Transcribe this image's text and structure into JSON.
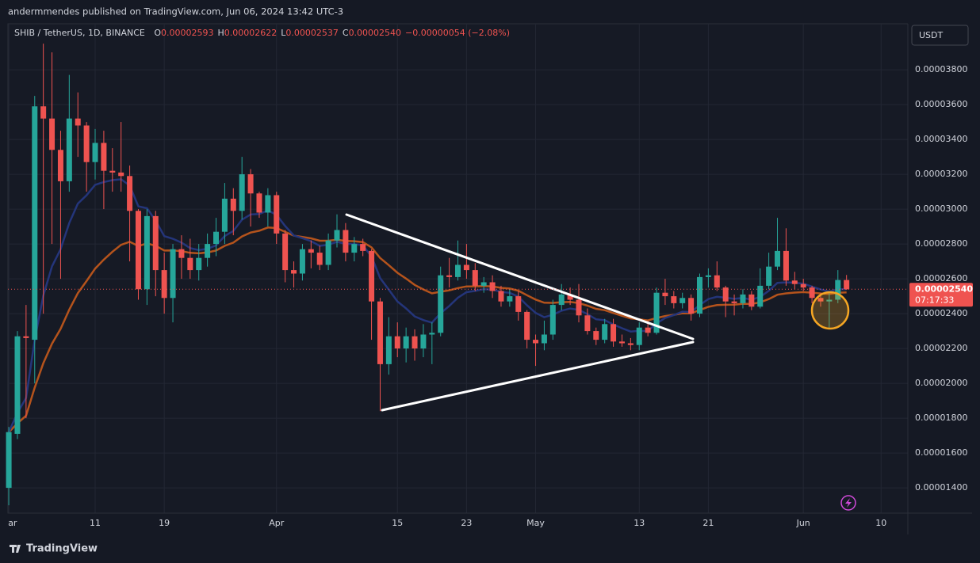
{
  "header": {
    "published": "andermmendes published on TradingView.com, Jun 06, 2024 13:42 UTC-3",
    "brand": "TradingView"
  },
  "chart_data": {
    "type": "candlestick",
    "legend": {
      "symbol": "SHIB / TetherUS, 1D, BINANCE",
      "items": [
        {
          "key": "O",
          "label": "0.00002593"
        },
        {
          "key": "H",
          "label": "0.00002622"
        },
        {
          "key": "L",
          "label": "0.00002537"
        },
        {
          "key": "C",
          "label": "0.00002540"
        }
      ],
      "change": "−0.00000054 (−2.08%)"
    },
    "currency": "USDT",
    "price_tag": {
      "label": "0.00002540",
      "countdown": "07:17:33"
    },
    "up_color": "#26a69a",
    "down_color": "#ef5350",
    "grid": true,
    "open": [
      1.4e-05,
      1.71e-05,
      2.27e-05,
      2.25e-05,
      3.59e-05,
      3.52e-05,
      3.34e-05,
      3.16e-05,
      3.52e-05,
      3.48e-05,
      3.27e-05,
      3.38e-05,
      3.22e-05,
      3.21e-05,
      3.19e-05,
      2.99e-05,
      2.54e-05,
      2.96e-05,
      2.65e-05,
      2.49e-05,
      2.77e-05,
      2.72e-05,
      2.65e-05,
      2.72e-05,
      2.8e-05,
      2.87e-05,
      3.06e-05,
      2.99e-05,
      3.2e-05,
      3.09e-05,
      2.98e-05,
      3.08e-05,
      2.86e-05,
      2.65e-05,
      2.63e-05,
      2.77e-05,
      2.75e-05,
      2.68e-05,
      2.82e-05,
      2.88e-05,
      2.75e-05,
      2.8e-05,
      2.76e-05,
      2.47e-05,
      2.11e-05,
      2.27e-05,
      2.2e-05,
      2.27e-05,
      2.2e-05,
      2.28e-05,
      2.29e-05,
      2.62e-05,
      2.61e-05,
      2.68e-05,
      2.65e-05,
      2.56e-05,
      2.58e-05,
      2.53e-05,
      2.47e-05,
      2.5e-05,
      2.41e-05,
      2.25e-05,
      2.23e-05,
      2.28e-05,
      2.45e-05,
      2.51e-05,
      2.48e-05,
      2.39e-05,
      2.3e-05,
      2.25e-05,
      2.34e-05,
      2.24e-05,
      2.23e-05,
      2.22e-05,
      2.32e-05,
      2.29e-05,
      2.52e-05,
      2.5e-05,
      2.46e-05,
      2.49e-05,
      2.4e-05,
      2.61e-05,
      2.62e-05,
      2.55e-05,
      2.47e-05,
      2.46e-05,
      2.51e-05,
      2.44e-05,
      2.56e-05,
      2.67e-05,
      2.76e-05,
      2.59e-05,
      2.57e-05,
      2.55e-05,
      2.49e-05,
      2.47e-05,
      2.48e-05,
      2.593e-05
    ],
    "high": [
      1.75e-05,
      2.3e-05,
      2.45e-05,
      3.65e-05,
      3.95e-05,
      3.9e-05,
      3.45e-05,
      3.77e-05,
      3.67e-05,
      3.5e-05,
      3.46e-05,
      3.45e-05,
      3.35e-05,
      3.5e-05,
      3.25e-05,
      3e-05,
      3e-05,
      2.99e-05,
      2.75e-05,
      2.8e-05,
      2.85e-05,
      2.83e-05,
      2.8e-05,
      2.86e-05,
      2.95e-05,
      3.15e-05,
      3.12e-05,
      3.3e-05,
      3.23e-05,
      3.1e-05,
      3.12e-05,
      3.1e-05,
      2.88e-05,
      2.7e-05,
      2.8e-05,
      2.82e-05,
      2.79e-05,
      2.86e-05,
      2.97e-05,
      2.92e-05,
      2.84e-05,
      2.83e-05,
      2.77e-05,
      2.49e-05,
      2.38e-05,
      2.35e-05,
      2.32e-05,
      2.31e-05,
      2.34e-05,
      2.35e-05,
      2.67e-05,
      2.72e-05,
      2.82e-05,
      2.8e-05,
      2.69e-05,
      2.61e-05,
      2.62e-05,
      2.56e-05,
      2.54e-05,
      2.53e-05,
      2.42e-05,
      2.28e-05,
      2.36e-05,
      2.48e-05,
      2.57e-05,
      2.55e-05,
      2.57e-05,
      2.43e-05,
      2.32e-05,
      2.37e-05,
      2.37e-05,
      2.28e-05,
      2.26e-05,
      2.35e-05,
      2.36e-05,
      2.55e-05,
      2.6e-05,
      2.53e-05,
      2.52e-05,
      2.51e-05,
      2.63e-05,
      2.66e-05,
      2.7e-05,
      2.56e-05,
      2.51e-05,
      2.54e-05,
      2.53e-05,
      2.66e-05,
      2.75e-05,
      2.95e-05,
      2.89e-05,
      2.64e-05,
      2.6e-05,
      2.56e-05,
      2.52e-05,
      2.52e-05,
      2.65e-05,
      2.622e-05
    ],
    "low": [
      1.3e-05,
      1.68e-05,
      1.8e-05,
      2e-05,
      2.4e-05,
      2.8e-05,
      2.6e-05,
      3.1e-05,
      3.3e-05,
      3.1e-05,
      3.17e-05,
      3e-05,
      3.1e-05,
      3.1e-05,
      2.7e-05,
      2.48e-05,
      2.45e-05,
      2.5e-05,
      2.4e-05,
      2.35e-05,
      2.6e-05,
      2.6e-05,
      2.59e-05,
      2.67e-05,
      2.73e-05,
      2.8e-05,
      2.85e-05,
      2.94e-05,
      2.9e-05,
      2.95e-05,
      2.9e-05,
      2.8e-05,
      2.58e-05,
      2.55e-05,
      2.59e-05,
      2.66e-05,
      2.65e-05,
      2.65e-05,
      2.78e-05,
      2.7e-05,
      2.7e-05,
      2.73e-05,
      2.25e-05,
      1.84e-05,
      2.05e-05,
      2.15e-05,
      2.12e-05,
      2.13e-05,
      2.15e-05,
      2.11e-05,
      2.27e-05,
      2.55e-05,
      2.59e-05,
      2.6e-05,
      2.53e-05,
      2.52e-05,
      2.49e-05,
      2.44e-05,
      2.44e-05,
      2.36e-05,
      2.2e-05,
      2.1e-05,
      2.19e-05,
      2.25e-05,
      2.42e-05,
      2.45e-05,
      2.35e-05,
      2.28e-05,
      2.22e-05,
      2.23e-05,
      2.21e-05,
      2.21e-05,
      2.19e-05,
      2.19e-05,
      2.27e-05,
      2.28e-05,
      2.45e-05,
      2.43e-05,
      2.43e-05,
      2.36e-05,
      2.38e-05,
      2.55e-05,
      2.53e-05,
      2.38e-05,
      2.39e-05,
      2.43e-05,
      2.42e-05,
      2.43e-05,
      2.54e-05,
      2.65e-05,
      2.56e-05,
      2.54e-05,
      2.53e-05,
      2.46e-05,
      2.44e-05,
      2.32e-05,
      2.46e-05,
      2.537e-05
    ],
    "close": [
      1.72e-05,
      2.27e-05,
      2.26e-05,
      3.59e-05,
      3.52e-05,
      3.34e-05,
      3.16e-05,
      3.52e-05,
      3.48e-05,
      3.27e-05,
      3.38e-05,
      3.22e-05,
      3.21e-05,
      3.19e-05,
      2.99e-05,
      2.54e-05,
      2.96e-05,
      2.65e-05,
      2.49e-05,
      2.77e-05,
      2.72e-05,
      2.65e-05,
      2.72e-05,
      2.8e-05,
      2.87e-05,
      3.06e-05,
      2.99e-05,
      3.2e-05,
      3.09e-05,
      2.98e-05,
      3.08e-05,
      2.86e-05,
      2.65e-05,
      2.63e-05,
      2.77e-05,
      2.75e-05,
      2.68e-05,
      2.82e-05,
      2.88e-05,
      2.75e-05,
      2.8e-05,
      2.76e-05,
      2.47e-05,
      2.11e-05,
      2.27e-05,
      2.2e-05,
      2.27e-05,
      2.2e-05,
      2.28e-05,
      2.29e-05,
      2.62e-05,
      2.61e-05,
      2.68e-05,
      2.65e-05,
      2.56e-05,
      2.58e-05,
      2.53e-05,
      2.47e-05,
      2.5e-05,
      2.41e-05,
      2.25e-05,
      2.23e-05,
      2.28e-05,
      2.45e-05,
      2.51e-05,
      2.48e-05,
      2.39e-05,
      2.3e-05,
      2.25e-05,
      2.34e-05,
      2.24e-05,
      2.23e-05,
      2.22e-05,
      2.32e-05,
      2.29e-05,
      2.52e-05,
      2.5e-05,
      2.46e-05,
      2.49e-05,
      2.4e-05,
      2.61e-05,
      2.62e-05,
      2.55e-05,
      2.47e-05,
      2.46e-05,
      2.51e-05,
      2.44e-05,
      2.56e-05,
      2.67e-05,
      2.76e-05,
      2.59e-05,
      2.57e-05,
      2.55e-05,
      2.49e-05,
      2.47e-05,
      2.48e-05,
      2.593e-05,
      2.54e-05
    ],
    "xlim": [
      -0.1,
      104.1
    ],
    "xticks": [
      {
        "value": 0,
        "label": "Mar"
      },
      {
        "value": 10,
        "label": "11"
      },
      {
        "value": 18,
        "label": "19"
      },
      {
        "value": 31,
        "label": "Apr"
      },
      {
        "value": 45,
        "label": "15"
      },
      {
        "value": 53,
        "label": "23"
      },
      {
        "value": 61,
        "label": "May"
      },
      {
        "value": 73,
        "label": "13"
      },
      {
        "value": 81,
        "label": "21"
      },
      {
        "value": 92,
        "label": "Jun"
      },
      {
        "value": 101,
        "label": "10"
      }
    ],
    "ylim": [
      1.255e-05,
      4.064e-05
    ],
    "yticks": [
      {
        "value": 1.4e-05,
        "label": "0.00001400"
      },
      {
        "value": 1.6e-05,
        "label": "0.00001600"
      },
      {
        "value": 1.8e-05,
        "label": "0.00001800"
      },
      {
        "value": 2e-05,
        "label": "0.00002000"
      },
      {
        "value": 2.2e-05,
        "label": "0.00002200"
      },
      {
        "value": 2.4e-05,
        "label": "0.00002400"
      },
      {
        "value": 2.6e-05,
        "label": "0.00002600"
      },
      {
        "value": 2.8e-05,
        "label": "0.00002800"
      },
      {
        "value": 3e-05,
        "label": "0.00003000"
      },
      {
        "value": 3.2e-05,
        "label": "0.00003200"
      },
      {
        "value": 3.4e-05,
        "label": "0.00003400"
      },
      {
        "value": 3.6e-05,
        "label": "0.00003600"
      },
      {
        "value": 3.8e-05,
        "label": "0.00003800"
      }
    ]
  }
}
